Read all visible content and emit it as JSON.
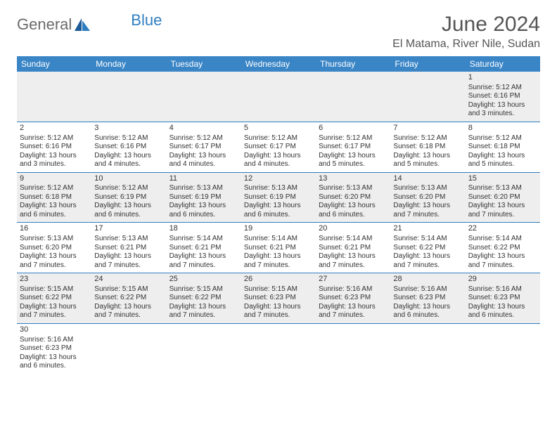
{
  "brand": {
    "name_part1": "General",
    "name_part2": "Blue"
  },
  "title": "June 2024",
  "location": "El Matama, River Nile, Sudan",
  "header_bg": "#3a85c6",
  "row_divider_color": "#2f7ec1",
  "alt_row_bg": "#eeeeee",
  "text_color": "#333333",
  "days_of_week": [
    "Sunday",
    "Monday",
    "Tuesday",
    "Wednesday",
    "Thursday",
    "Friday",
    "Saturday"
  ],
  "weeks": [
    [
      null,
      null,
      null,
      null,
      null,
      null,
      {
        "n": "1",
        "sr": "5:12 AM",
        "ss": "6:16 PM",
        "dl": "13 hours and 3 minutes."
      }
    ],
    [
      {
        "n": "2",
        "sr": "5:12 AM",
        "ss": "6:16 PM",
        "dl": "13 hours and 3 minutes."
      },
      {
        "n": "3",
        "sr": "5:12 AM",
        "ss": "6:16 PM",
        "dl": "13 hours and 4 minutes."
      },
      {
        "n": "4",
        "sr": "5:12 AM",
        "ss": "6:17 PM",
        "dl": "13 hours and 4 minutes."
      },
      {
        "n": "5",
        "sr": "5:12 AM",
        "ss": "6:17 PM",
        "dl": "13 hours and 4 minutes."
      },
      {
        "n": "6",
        "sr": "5:12 AM",
        "ss": "6:17 PM",
        "dl": "13 hours and 5 minutes."
      },
      {
        "n": "7",
        "sr": "5:12 AM",
        "ss": "6:18 PM",
        "dl": "13 hours and 5 minutes."
      },
      {
        "n": "8",
        "sr": "5:12 AM",
        "ss": "6:18 PM",
        "dl": "13 hours and 5 minutes."
      }
    ],
    [
      {
        "n": "9",
        "sr": "5:12 AM",
        "ss": "6:18 PM",
        "dl": "13 hours and 6 minutes."
      },
      {
        "n": "10",
        "sr": "5:12 AM",
        "ss": "6:19 PM",
        "dl": "13 hours and 6 minutes."
      },
      {
        "n": "11",
        "sr": "5:13 AM",
        "ss": "6:19 PM",
        "dl": "13 hours and 6 minutes."
      },
      {
        "n": "12",
        "sr": "5:13 AM",
        "ss": "6:19 PM",
        "dl": "13 hours and 6 minutes."
      },
      {
        "n": "13",
        "sr": "5:13 AM",
        "ss": "6:20 PM",
        "dl": "13 hours and 6 minutes."
      },
      {
        "n": "14",
        "sr": "5:13 AM",
        "ss": "6:20 PM",
        "dl": "13 hours and 7 minutes."
      },
      {
        "n": "15",
        "sr": "5:13 AM",
        "ss": "6:20 PM",
        "dl": "13 hours and 7 minutes."
      }
    ],
    [
      {
        "n": "16",
        "sr": "5:13 AM",
        "ss": "6:20 PM",
        "dl": "13 hours and 7 minutes."
      },
      {
        "n": "17",
        "sr": "5:13 AM",
        "ss": "6:21 PM",
        "dl": "13 hours and 7 minutes."
      },
      {
        "n": "18",
        "sr": "5:14 AM",
        "ss": "6:21 PM",
        "dl": "13 hours and 7 minutes."
      },
      {
        "n": "19",
        "sr": "5:14 AM",
        "ss": "6:21 PM",
        "dl": "13 hours and 7 minutes."
      },
      {
        "n": "20",
        "sr": "5:14 AM",
        "ss": "6:21 PM",
        "dl": "13 hours and 7 minutes."
      },
      {
        "n": "21",
        "sr": "5:14 AM",
        "ss": "6:22 PM",
        "dl": "13 hours and 7 minutes."
      },
      {
        "n": "22",
        "sr": "5:14 AM",
        "ss": "6:22 PM",
        "dl": "13 hours and 7 minutes."
      }
    ],
    [
      {
        "n": "23",
        "sr": "5:15 AM",
        "ss": "6:22 PM",
        "dl": "13 hours and 7 minutes."
      },
      {
        "n": "24",
        "sr": "5:15 AM",
        "ss": "6:22 PM",
        "dl": "13 hours and 7 minutes."
      },
      {
        "n": "25",
        "sr": "5:15 AM",
        "ss": "6:22 PM",
        "dl": "13 hours and 7 minutes."
      },
      {
        "n": "26",
        "sr": "5:15 AM",
        "ss": "6:23 PM",
        "dl": "13 hours and 7 minutes."
      },
      {
        "n": "27",
        "sr": "5:16 AM",
        "ss": "6:23 PM",
        "dl": "13 hours and 7 minutes."
      },
      {
        "n": "28",
        "sr": "5:16 AM",
        "ss": "6:23 PM",
        "dl": "13 hours and 6 minutes."
      },
      {
        "n": "29",
        "sr": "5:16 AM",
        "ss": "6:23 PM",
        "dl": "13 hours and 6 minutes."
      }
    ],
    [
      {
        "n": "30",
        "sr": "5:16 AM",
        "ss": "6:23 PM",
        "dl": "13 hours and 6 minutes."
      },
      null,
      null,
      null,
      null,
      null,
      null
    ]
  ],
  "labels": {
    "sunrise": "Sunrise:",
    "sunset": "Sunset:",
    "daylight": "Daylight:"
  }
}
